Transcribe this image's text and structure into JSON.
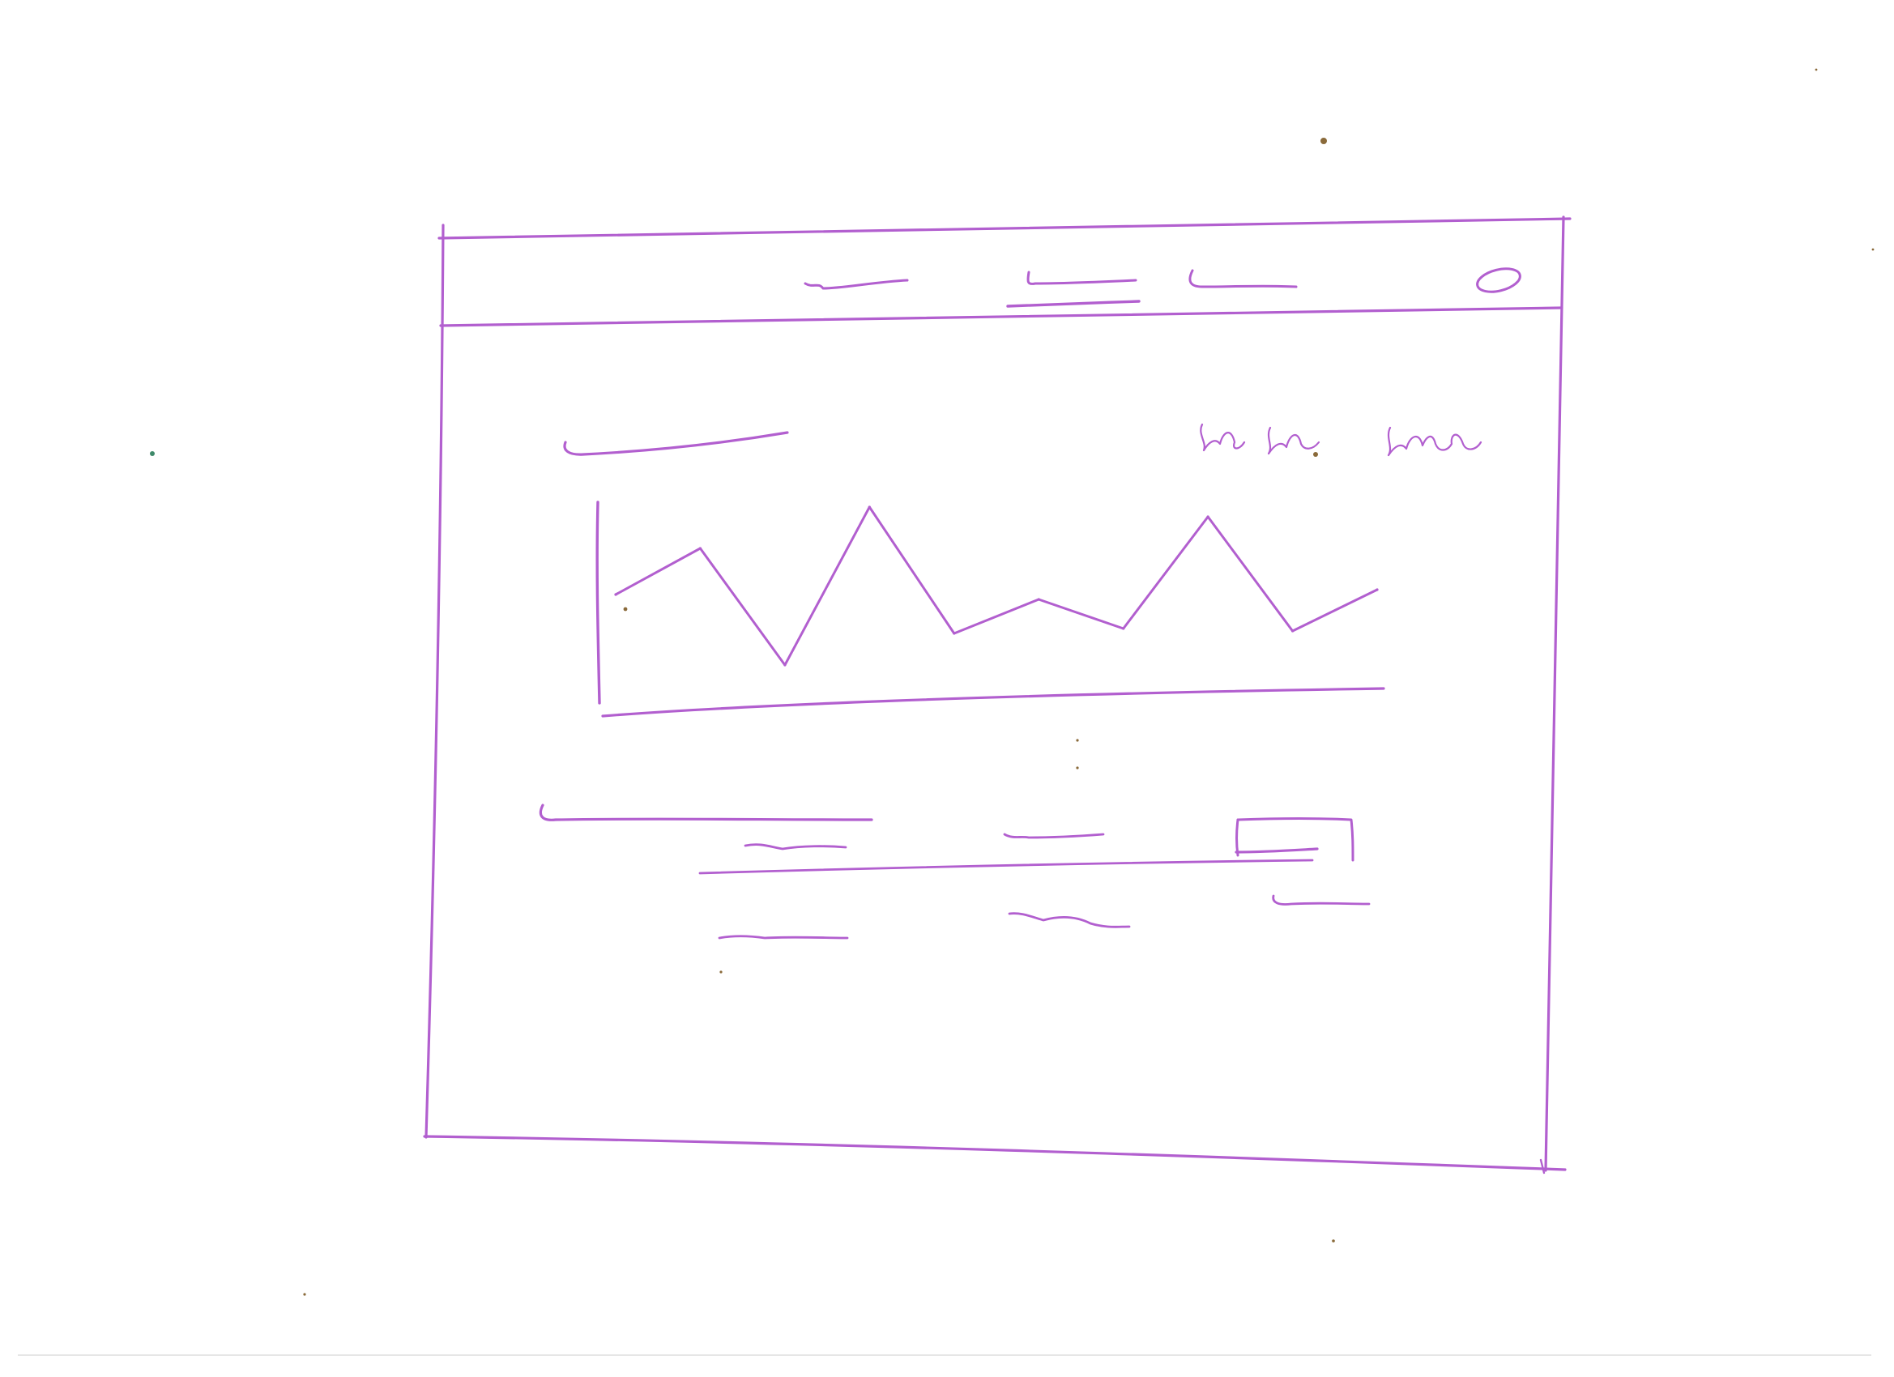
{
  "colors": {
    "paper": "#ffffff",
    "ink": "#b25fcf",
    "ink_dark": "#8e4d9c",
    "speck": "#8a6a3a",
    "speck_green": "#3f8a6a"
  },
  "nav": {
    "items": [
      {
        "name": "nav-item-1",
        "active": false
      },
      {
        "name": "nav-item-2",
        "active": true
      },
      {
        "name": "nav-item-3",
        "active": false
      }
    ],
    "profile_icon": "circle-icon"
  },
  "chart_data": {
    "type": "line",
    "series": [
      {
        "values": [
          3.2,
          5.1,
          0.3,
          6.8,
          1.6,
          3.0,
          1.8,
          6.4,
          1.7,
          3.4
        ]
      }
    ]
  }
}
